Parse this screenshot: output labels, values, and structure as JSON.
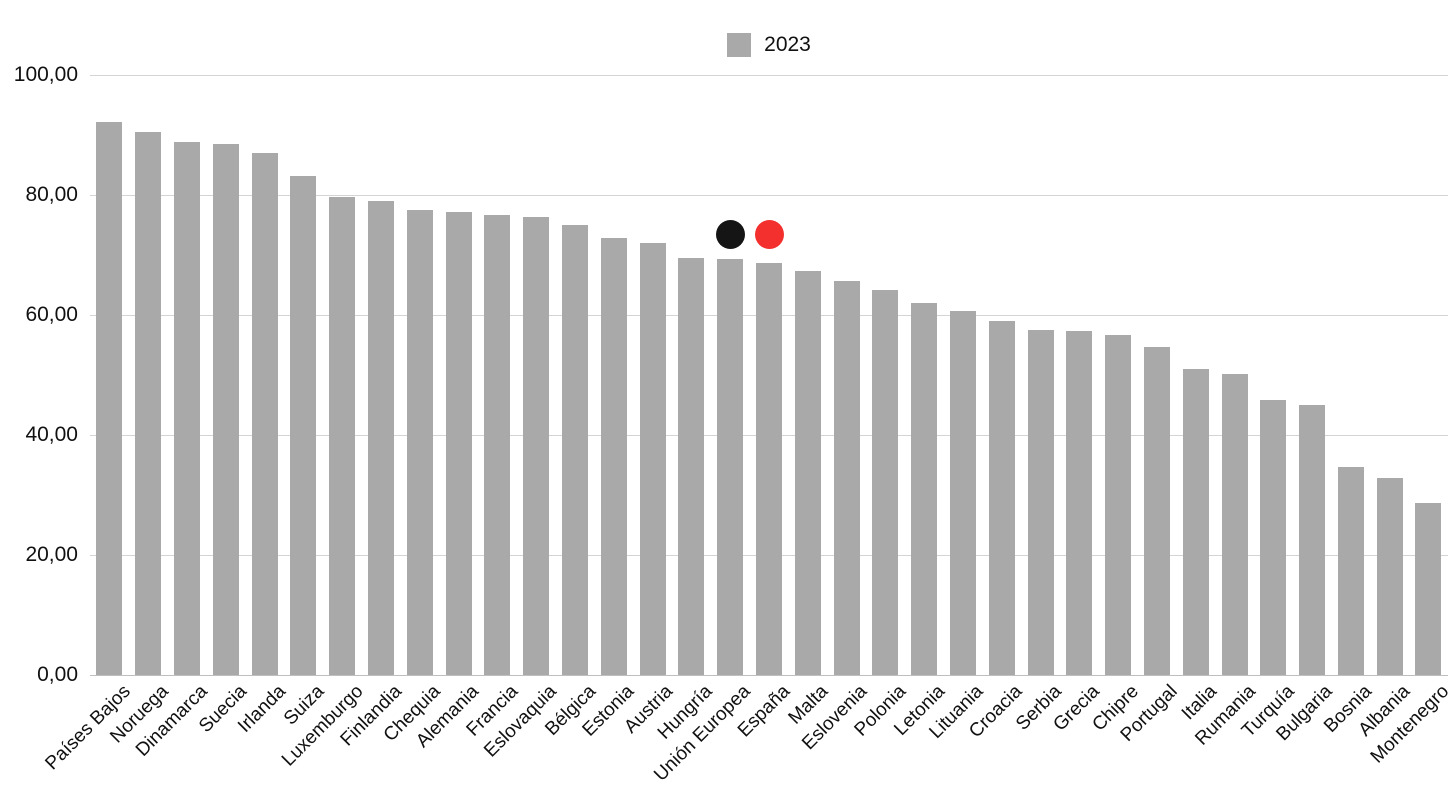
{
  "legend": {
    "items": [
      {
        "label": "2023",
        "swatch_color": "#a9a9a9"
      }
    ]
  },
  "colors": {
    "background": "#ffffff",
    "bar": "#a9a9a9",
    "gridline": "#d4d4d4",
    "baseline": "#bfbfbf",
    "axis_text": "#111111",
    "annotation_black": "#151515",
    "annotation_red": "#f3302e"
  },
  "chart_data": {
    "type": "bar",
    "title": "",
    "xlabel": "",
    "ylabel": "",
    "categories": [
      "Países Bajos",
      "Noruega",
      "Dinamarca",
      "Suecia",
      "Irlanda",
      "Suiza",
      "Luxemburgo",
      "Finlandia",
      "Chequia",
      "Alemania",
      "Francia",
      "Eslovaquia",
      "Bélgica",
      "Estonia",
      "Austria",
      "Hungría",
      "Unión Europea",
      "España",
      "Malta",
      "Eslovenia",
      "Polonia",
      "Letonia",
      "Lituania",
      "Croacia",
      "Serbia",
      "Grecia",
      "Chipre",
      "Portugal",
      "Italia",
      "Rumania",
      "Turquía",
      "Bulgaria",
      "Bosnia",
      "Albania",
      "Montenegro"
    ],
    "series": [
      {
        "name": "2023",
        "values": [
          92.1,
          90.5,
          88.8,
          88.5,
          87.0,
          83.2,
          79.6,
          79.0,
          77.5,
          77.2,
          76.7,
          76.4,
          75.0,
          72.8,
          72.0,
          69.5,
          69.4,
          68.6,
          67.4,
          65.7,
          64.1,
          62.0,
          60.7,
          59.0,
          57.5,
          57.4,
          56.6,
          54.6,
          51.0,
          50.2,
          45.8,
          45.0,
          34.7,
          32.9,
          28.6
        ]
      }
    ],
    "ylim": [
      0,
      100
    ],
    "yticks": [
      {
        "value": 100,
        "label": "100,00"
      },
      {
        "value": 80,
        "label": "80,00"
      },
      {
        "value": 60,
        "label": "60,00"
      },
      {
        "value": 40,
        "label": "40,00"
      },
      {
        "value": 20,
        "label": "20,00"
      },
      {
        "value": 0,
        "label": "0,00"
      }
    ],
    "grid": true,
    "legend_position": "top-center",
    "annotations": [
      {
        "type": "dot",
        "category": "Unión Europea",
        "value": 73.5,
        "color": "#151515",
        "name": "eu-marker-dot"
      },
      {
        "type": "dot",
        "category": "España",
        "value": 73.5,
        "color": "#f3302e",
        "name": "spain-marker-dot"
      }
    ]
  }
}
